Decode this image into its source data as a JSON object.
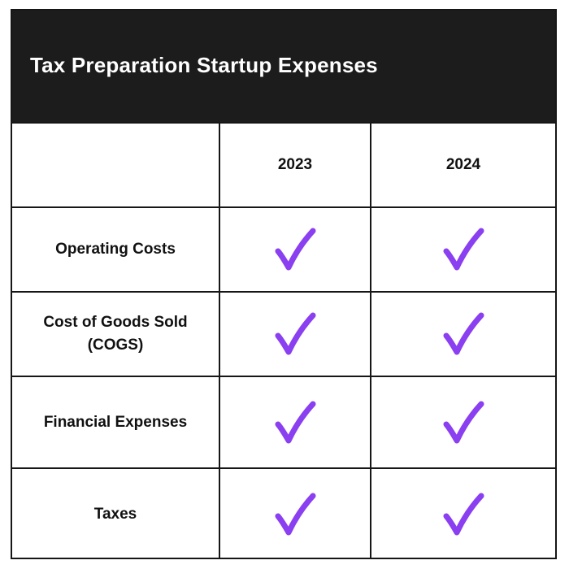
{
  "title": "Tax Preparation Startup Expenses",
  "columns": [
    "",
    "2023",
    "2024"
  ],
  "rows": [
    {
      "label": "Operating Costs",
      "y2023": true,
      "y2024": true
    },
    {
      "label": "Cost of Goods Sold (COGS)",
      "y2023": true,
      "y2024": true
    },
    {
      "label": "Financial Expenses",
      "y2023": true,
      "y2024": true
    },
    {
      "label": "Taxes",
      "y2023": true,
      "y2024": true
    }
  ],
  "colors": {
    "header_bg": "#1c1c1c",
    "header_text": "#ffffff",
    "border": "#161616",
    "check": "#8a3ff0"
  },
  "icons": {
    "included": "checkmark-icon"
  }
}
